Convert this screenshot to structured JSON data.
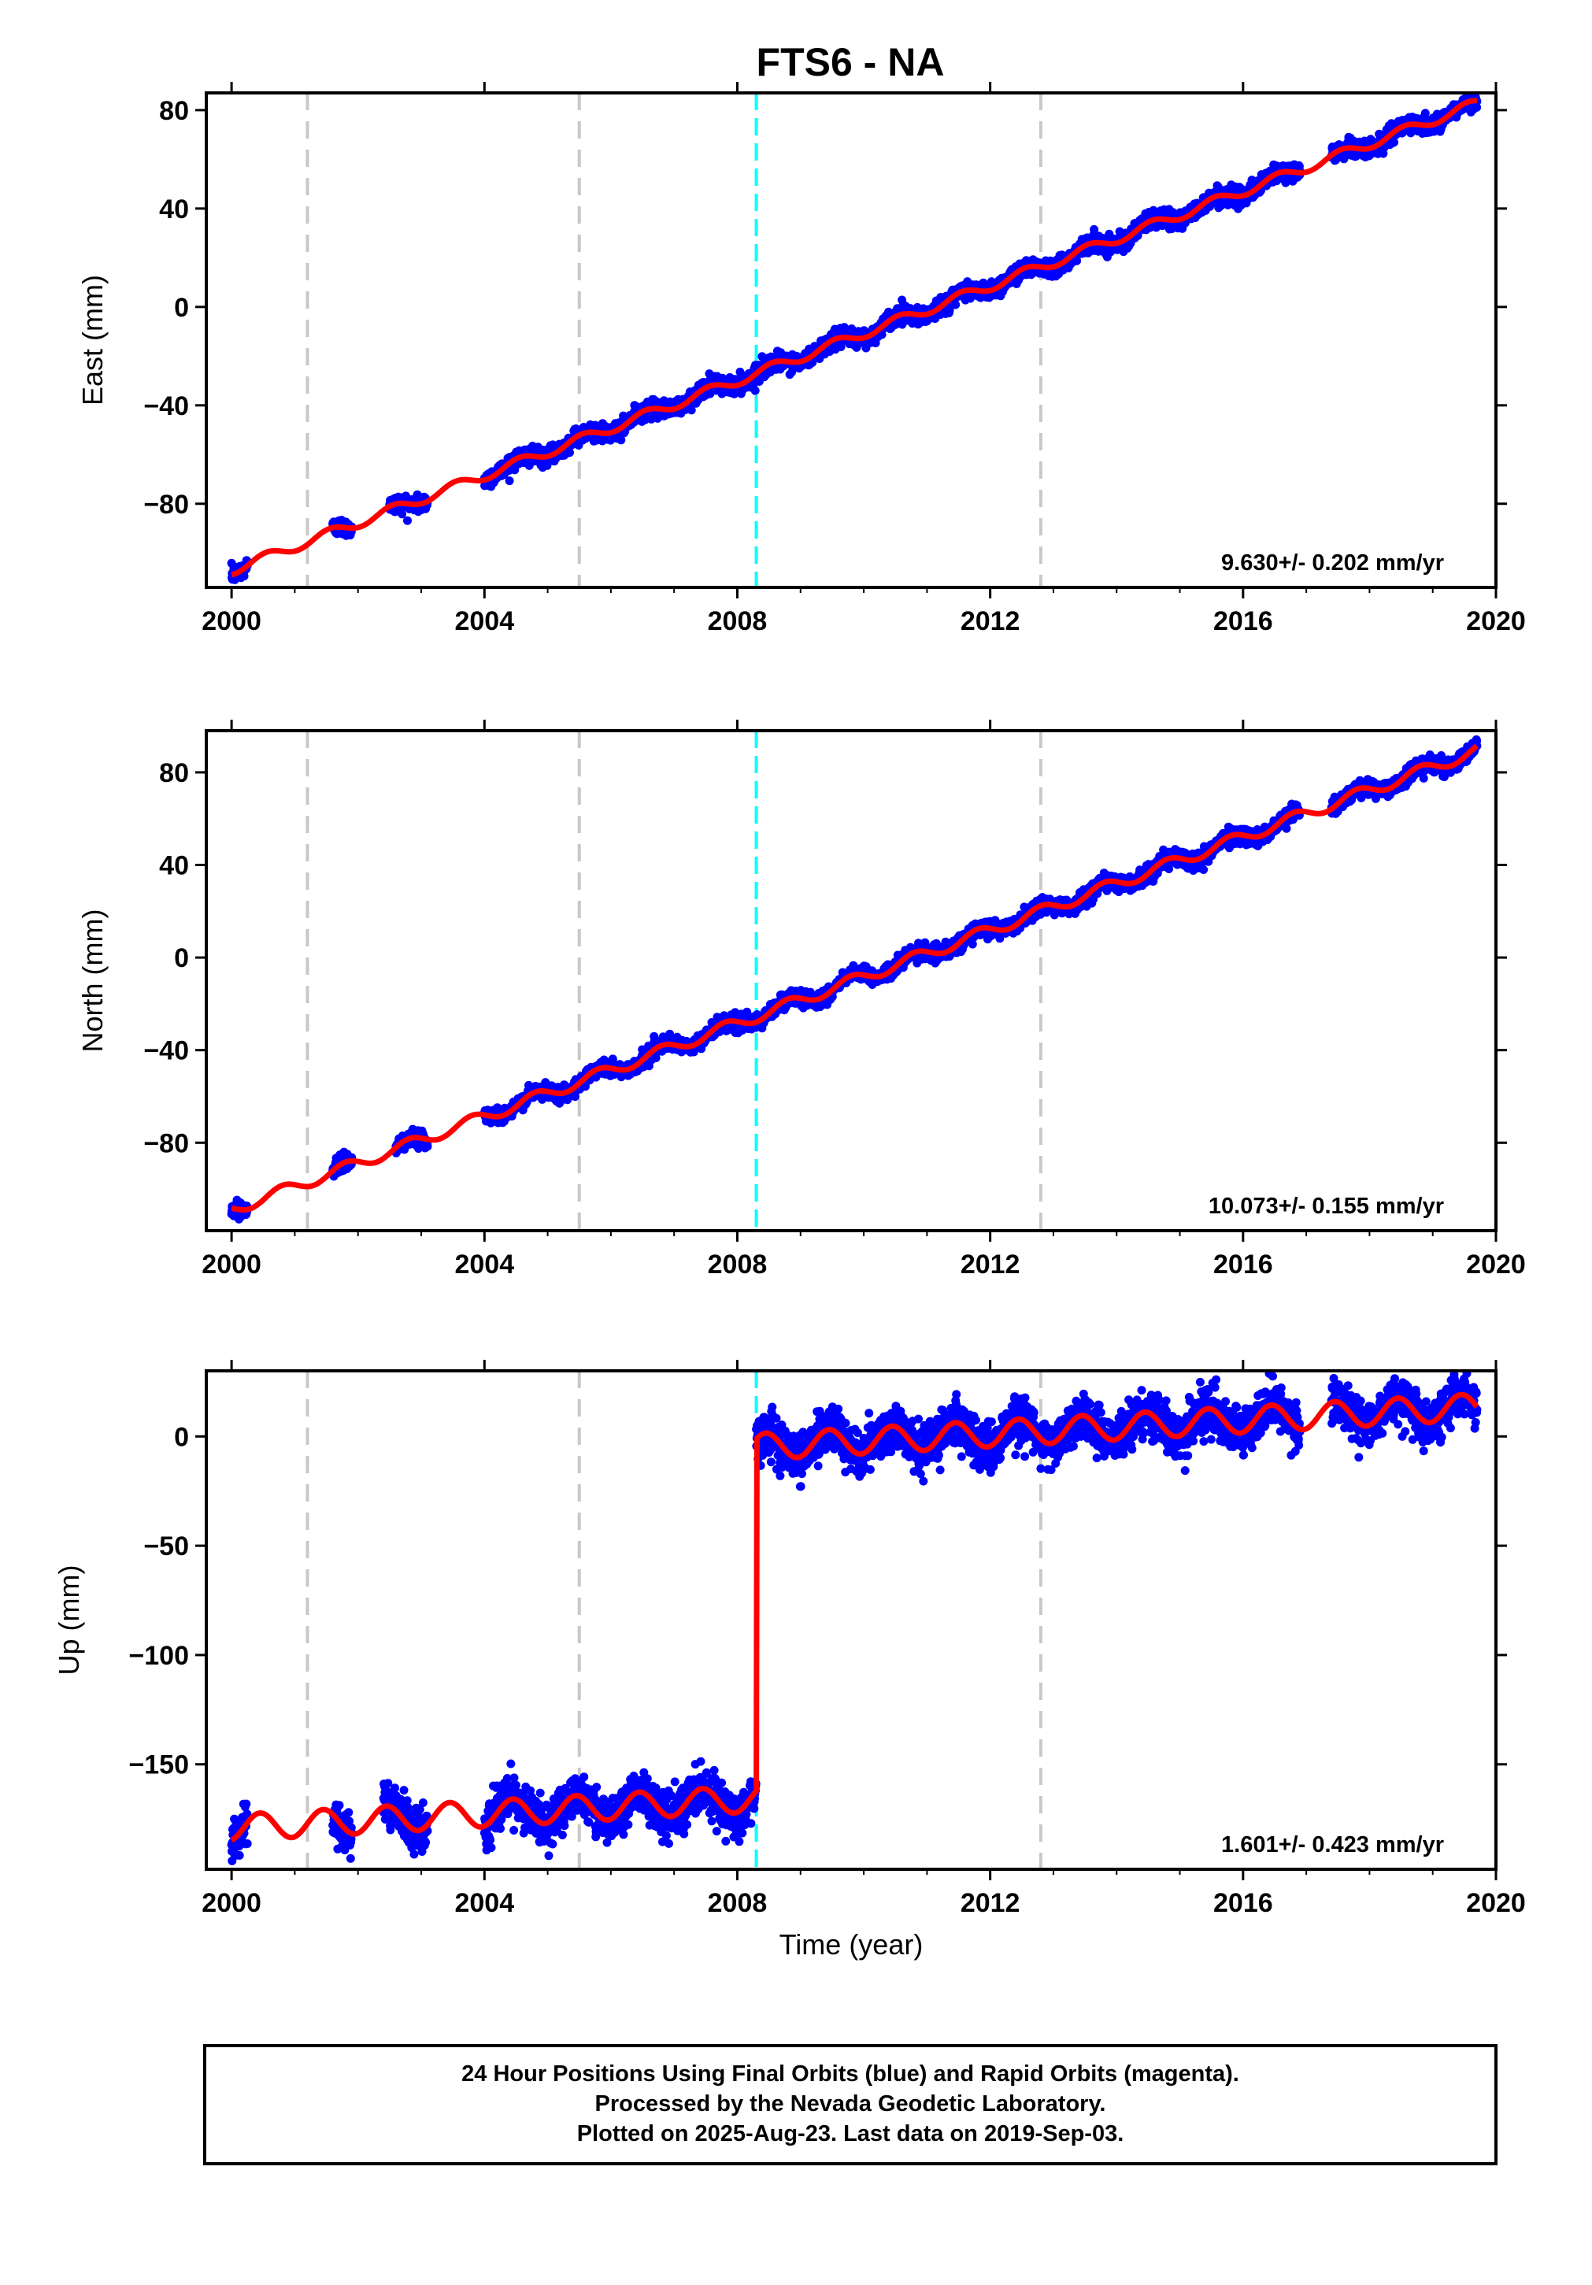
{
  "title": "FTS6 - NA",
  "colors": {
    "final_orbits": "#0000ff",
    "model_fit": "#ff0000",
    "antenna_change": "#c8c8c8",
    "equipment_change": "#00ffff"
  },
  "footer": {
    "line1": "24 Hour Positions Using Final Orbits (blue) and Rapid Orbits (magenta).",
    "line2": "Processed by the Nevada Geodetic Laboratory.",
    "line3": "Plotted on 2025-Aug-23. Last data on 2019-Sep-03."
  },
  "chart_data": [
    {
      "type": "scatter",
      "component": "east",
      "ylabel": "East (mm)",
      "xlabel": "",
      "xlim": [
        1999.6,
        2020.0
      ],
      "ylim": [
        -114,
        87
      ],
      "xticks": [
        "2000",
        "2004",
        "2008",
        "2012",
        "2016",
        "2020"
      ],
      "yticks": [
        "80",
        "40",
        "0",
        "−40",
        "−80"
      ],
      "ytick_values": [
        80,
        40,
        0,
        -40,
        -80
      ],
      "rate": "9.630+/- 0.202 mm/yr",
      "gray_dashed_lines": [
        2001.2,
        2005.5,
        2012.8
      ],
      "cyan_dashed_lines": [
        2008.3
      ],
      "data_segments": [
        [
          2000.0,
          2000.25
        ],
        [
          2001.6,
          2001.9
        ],
        [
          2002.5,
          2003.1
        ],
        [
          2004.0,
          2016.9
        ],
        [
          2017.4,
          2019.7
        ]
      ],
      "trend": {
        "t0": 2000.0,
        "y0": -107,
        "rate": 9.63,
        "annual_amp": 2.0,
        "phase": 0.3,
        "offsets": []
      },
      "noise_mm": 1.7
    },
    {
      "type": "scatter",
      "component": "north",
      "ylabel": "North (mm)",
      "xlabel": "",
      "xlim": [
        1999.6,
        2020.0
      ],
      "ylim": [
        -118,
        98
      ],
      "xticks": [
        "2000",
        "2004",
        "2008",
        "2012",
        "2016",
        "2020"
      ],
      "yticks": [
        "80",
        "40",
        "0",
        "−40",
        "−80"
      ],
      "ytick_values": [
        80,
        40,
        0,
        -40,
        -80
      ],
      "rate": "10.073+/- 0.155 mm/yr",
      "gray_dashed_lines": [
        2001.2,
        2005.5,
        2012.8
      ],
      "cyan_dashed_lines": [
        2008.3
      ],
      "data_segments": [
        [
          2000.0,
          2000.25
        ],
        [
          2001.6,
          2001.9
        ],
        [
          2002.6,
          2003.1
        ],
        [
          2004.0,
          2016.9
        ],
        [
          2017.4,
          2019.7
        ]
      ],
      "trend": {
        "t0": 2000.0,
        "y0": -109,
        "rate": 10.07,
        "annual_amp": 2.5,
        "phase": 0.55,
        "offsets": []
      },
      "noise_mm": 1.6
    },
    {
      "type": "scatter",
      "component": "up",
      "ylabel": "Up (mm)",
      "xlabel": "Time (year)",
      "xlim": [
        1999.6,
        2020.0
      ],
      "ylim": [
        -198,
        30
      ],
      "xticks": [
        "2000",
        "2004",
        "2008",
        "2012",
        "2016",
        "2020"
      ],
      "yticks": [
        "0",
        "−50",
        "−100",
        "−150"
      ],
      "ytick_values": [
        0,
        -50,
        -100,
        -150
      ],
      "rate": "1.601+/- 0.423 mm/yr",
      "gray_dashed_lines": [
        2001.2,
        2005.5,
        2012.8
      ],
      "cyan_dashed_lines": [
        2008.3
      ],
      "data_segments": [
        [
          2000.0,
          2000.25
        ],
        [
          2001.6,
          2001.9
        ],
        [
          2002.4,
          2003.1
        ],
        [
          2004.0,
          2016.9
        ],
        [
          2017.4,
          2019.7
        ]
      ],
      "trend": {
        "t0": 2000.0,
        "y0": -179,
        "rate": 1.6,
        "annual_amp": 6.0,
        "phase": 0.2,
        "offsets": [
          {
            "t": 2008.3,
            "dy": 161
          }
        ]
      },
      "noise_mm": 5.0
    }
  ]
}
